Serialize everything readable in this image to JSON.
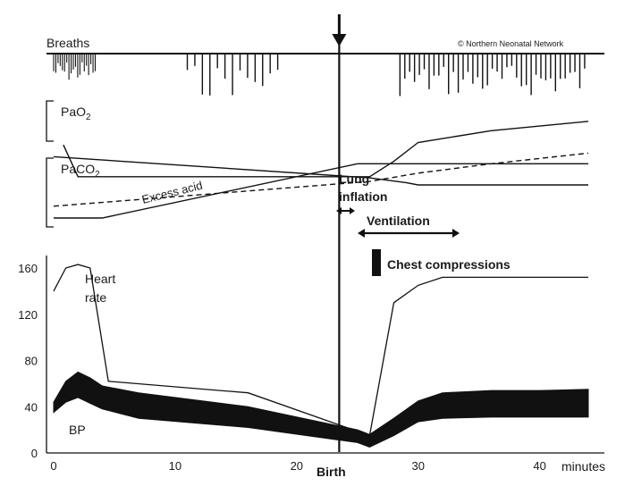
{
  "copyright": "© Northern Neonatal Network",
  "chart_data": {
    "type": "line",
    "x_unit": "minutes",
    "xlim": [
      0,
      44
    ],
    "x_ticks": [
      0,
      10,
      20,
      30,
      40
    ],
    "ylim": [
      0,
      165
    ],
    "y_ticks": [
      0,
      40,
      80,
      120,
      160
    ],
    "birth_minute": 23.5,
    "labels": {
      "breaths": "Breaths",
      "pao2": "PaO",
      "pao2_sub": "2",
      "paco2": "PaCO",
      "paco2_sub": "2",
      "excess_acid": "Excess acid",
      "lung_inflation_1": "Lung",
      "lung_inflation_2": "inflation",
      "ventilation": "Ventilation",
      "chest_compressions": "Chest compressions",
      "heart_rate_1": "Heart",
      "heart_rate_2": "rate",
      "bp": "BP",
      "birth": "Birth",
      "minutes": "minutes"
    },
    "heart_rate": {
      "x": [
        0,
        1,
        2,
        3,
        4.5,
        16,
        26,
        28,
        30,
        32,
        40,
        44
      ],
      "y": [
        140,
        160,
        163,
        160,
        62,
        52,
        15,
        130,
        145,
        152,
        152,
        152
      ]
    },
    "bp": {
      "x": [
        0,
        1,
        2,
        3,
        4,
        7,
        16,
        25,
        26,
        28,
        30,
        32,
        36,
        40,
        44
      ],
      "upper": [
        44,
        62,
        70,
        65,
        58,
        52,
        40,
        20,
        16,
        30,
        45,
        52,
        54,
        54,
        55
      ],
      "lower": [
        35,
        44,
        48,
        43,
        38,
        30,
        22,
        9,
        5,
        15,
        27,
        30,
        31,
        31,
        31
      ]
    },
    "relative_traces": {
      "pao2": {
        "x": [
          0.8,
          2,
          26,
          28,
          30,
          36,
          44
        ],
        "y": [
          0.62,
          0.35,
          0.35,
          0.48,
          0.64,
          0.74,
          0.82
        ]
      },
      "paco2_first": {
        "x": [
          0,
          26,
          29,
          30,
          32,
          44
        ],
        "y": [
          0.52,
          0.34,
          0.3,
          0.28,
          0.28,
          0.28
        ]
      },
      "paco2_second": {
        "x": [
          0,
          26,
          30,
          36,
          44
        ],
        "y": [
          0.1,
          0.31,
          0.38,
          0.46,
          0.55
        ]
      },
      "excess_acid": {
        "x": [
          0,
          4,
          25,
          28,
          30,
          44
        ],
        "y": [
          0.0,
          0.0,
          0.46,
          0.46,
          0.46,
          0.46
        ]
      }
    },
    "breaths": {
      "bursts": [
        {
          "x": [
            0,
            3.5
          ]
        },
        {
          "x": [
            11,
            18.5
          ]
        },
        {
          "x": [
            28.5,
            44
          ]
        }
      ]
    }
  }
}
